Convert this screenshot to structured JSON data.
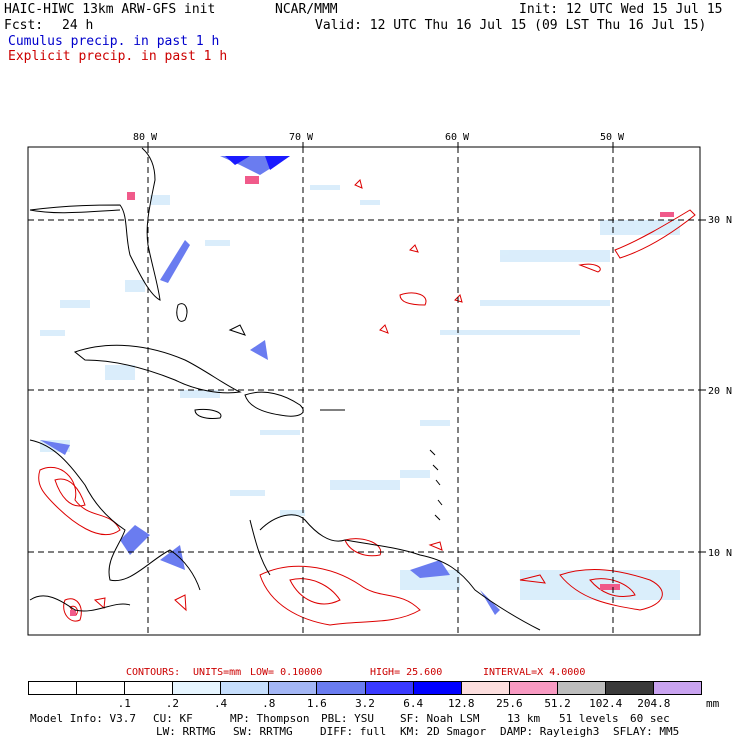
{
  "header": {
    "model": "HAIC-HIWC 13km ARW-GFS init",
    "org": "NCAR/MMM",
    "init": "Init: 12 UTC Wed 15 Jul 15",
    "fcst_label": "Fcst:",
    "fcst_value": "24 h",
    "valid": "Valid: 12 UTC Thu 16 Jul 15 (09 LST Thu 16 Jul 15)",
    "legend_cumulus": "Cumulus precip. in past 1 h",
    "legend_explicit": "Explicit precip. in past 1 h"
  },
  "map": {
    "lon_labels": [
      "80 W",
      "70 W",
      "60 W",
      "50 W"
    ],
    "lat_labels": [
      "30 N",
      "20 N",
      "10 N"
    ]
  },
  "contours": {
    "title": "CONTOURS:",
    "units": "UNITS=mm",
    "low": "LOW= 0.10000",
    "high": "HIGH= 25.600",
    "interval": "INTERVAL=X 4.0000"
  },
  "colorbar": {
    "ticks": [
      ".1",
      ".2",
      ".4",
      ".8",
      "1.6",
      "3.2",
      "6.4",
      "12.8",
      "25.6",
      "51.2",
      "102.4",
      "204.8"
    ],
    "unit": "mm",
    "colors": [
      "#ffffff",
      "#ffffff",
      "#ffffff",
      "#e6f5ff",
      "#c6defc",
      "#a3b6f5",
      "#6a7cf0",
      "#3a3aff",
      "#0000ff",
      "#fcdede",
      "#f89ac2",
      "#bdbdbd",
      "#3a3a3a",
      "#c9a3f0"
    ]
  },
  "model_info": {
    "line1": [
      {
        "k": "Model Info: V3.7"
      },
      {
        "k": "CU: KF"
      },
      {
        "k": "MP: Thompson"
      },
      {
        "k": "PBL: YSU"
      },
      {
        "k": "SF: Noah LSM"
      },
      {
        "k": "13 km"
      },
      {
        "k": "51 levels"
      },
      {
        "k": "60 sec"
      }
    ],
    "line2": [
      {
        "k": "LW: RRTMG"
      },
      {
        "k": "SW: RRTMG"
      },
      {
        "k": "DIFF: full"
      },
      {
        "k": "KM: 2D Smagor"
      },
      {
        "k": "DAMP: Rayleigh3"
      },
      {
        "k": "SFLAY: MM5"
      }
    ]
  }
}
